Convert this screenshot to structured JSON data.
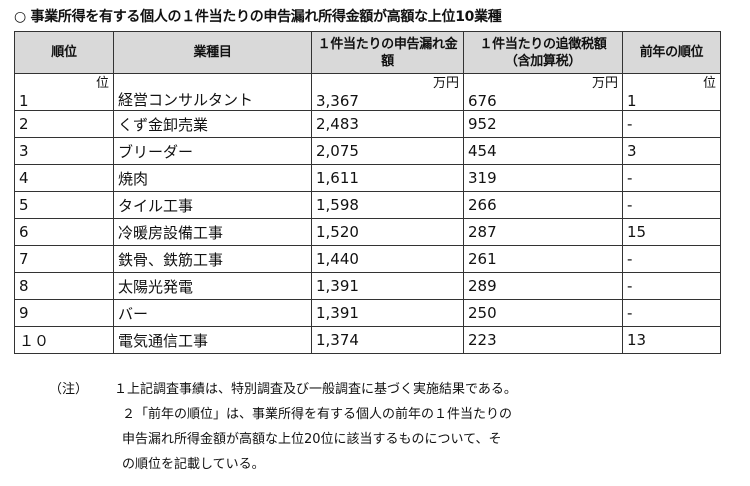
{
  "title": "○ 事業所得を有する個人の１件当たりの申告漏れ所得金額が高額な上位10業種",
  "headers": {
    "rank": "順位",
    "industry": "業種目",
    "undeclared": "１件当たりの申告漏れ金額",
    "additional_tax": "１件当たりの追徴税額（含加算税）",
    "prev_rank": "前年の順位"
  },
  "units": {
    "rank": "位",
    "undeclared": "万円",
    "additional_tax": "万円",
    "prev_rank": "位"
  },
  "rows": [
    {
      "rank": "1",
      "industry": "経営コンサルタント",
      "undeclared": "3,367",
      "additional_tax": "676",
      "prev_rank": "1"
    },
    {
      "rank": "2",
      "industry": "くず金卸売業",
      "undeclared": "2,483",
      "additional_tax": "952",
      "prev_rank": "-"
    },
    {
      "rank": "3",
      "industry": "ブリーダー",
      "undeclared": "2,075",
      "additional_tax": "454",
      "prev_rank": "3"
    },
    {
      "rank": "4",
      "industry": "焼肉",
      "undeclared": "1,611",
      "additional_tax": "319",
      "prev_rank": "-"
    },
    {
      "rank": "5",
      "industry": "タイル工事",
      "undeclared": "1,598",
      "additional_tax": "266",
      "prev_rank": "-"
    },
    {
      "rank": "6",
      "industry": "冷暖房設備工事",
      "undeclared": "1,520",
      "additional_tax": "287",
      "prev_rank": "15"
    },
    {
      "rank": "7",
      "industry": "鉄骨、鉄筋工事",
      "undeclared": "1,440",
      "additional_tax": "261",
      "prev_rank": "-"
    },
    {
      "rank": "8",
      "industry": "太陽光発電",
      "undeclared": "1,391",
      "additional_tax": "289",
      "prev_rank": "-"
    },
    {
      "rank": "9",
      "industry": "バー",
      "undeclared": "1,391",
      "additional_tax": "250",
      "prev_rank": "-"
    },
    {
      "rank": "１０",
      "industry": "電気通信工事",
      "undeclared": "1,374",
      "additional_tax": "223",
      "prev_rank": "13"
    }
  ],
  "notes": {
    "label": "（注）",
    "note1": "１上記調査事績は、特別調査及び一般調査に基づく実施結果である。",
    "note2_line1": "２「前年の順位」は、事業所得を有する個人の前年の１件当たりの",
    "note2_line2": "申告漏れ所得金額が高額な上位20位に該当するものについて、そ",
    "note2_line3": "の順位を記載している。"
  }
}
